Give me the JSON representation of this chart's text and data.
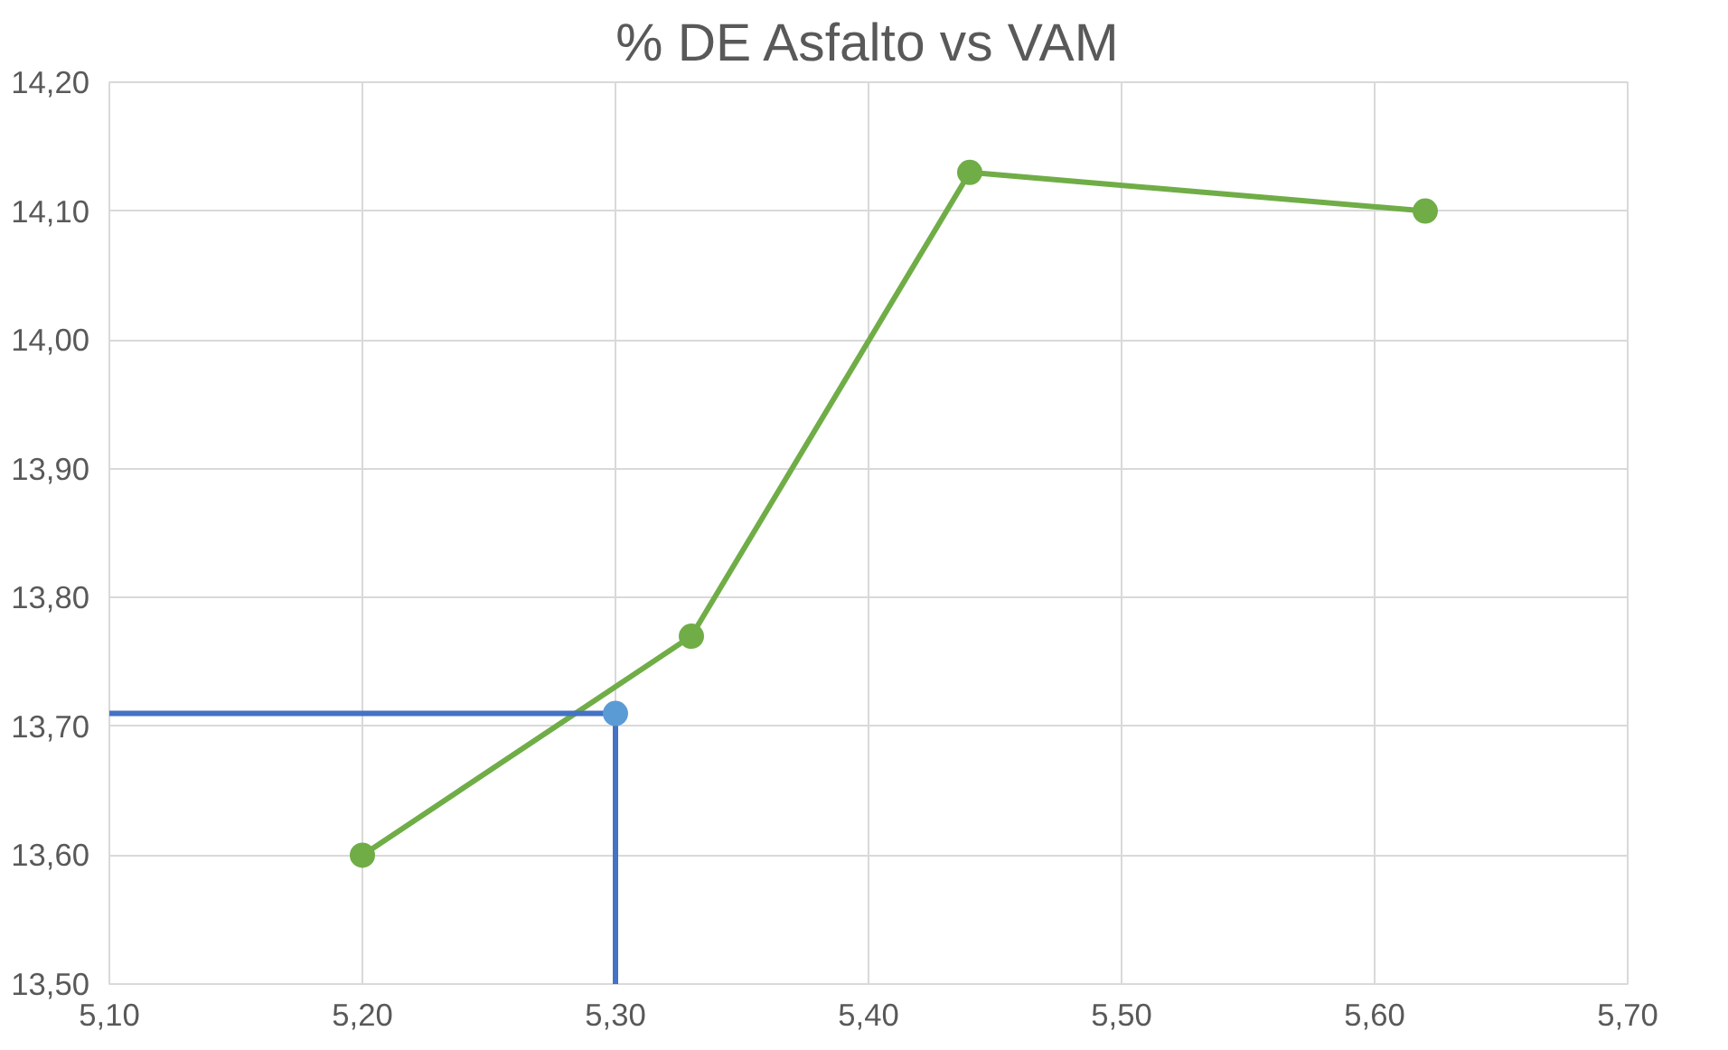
{
  "chart_data": {
    "type": "line",
    "title": "% DE Asfalto vs VAM",
    "xlim": [
      5.1,
      5.7
    ],
    "xticks": [
      {
        "value": 5.1,
        "label": "5,10"
      },
      {
        "value": 5.2,
        "label": "5,20"
      },
      {
        "value": 5.3,
        "label": "5,30"
      },
      {
        "value": 5.4,
        "label": "5,40"
      },
      {
        "value": 5.5,
        "label": "5,50"
      },
      {
        "value": 5.6,
        "label": "5,60"
      },
      {
        "value": 5.7,
        "label": "5,70"
      }
    ],
    "ylim": [
      13.5,
      14.2
    ],
    "yticks": [
      {
        "value": 13.5,
        "label": "13,50"
      },
      {
        "value": 13.6,
        "label": "13,60"
      },
      {
        "value": 13.7,
        "label": "13,70"
      },
      {
        "value": 13.8,
        "label": "13,80"
      },
      {
        "value": 13.9,
        "label": "13,90"
      },
      {
        "value": 14.0,
        "label": "14,00"
      },
      {
        "value": 14.1,
        "label": "14,10"
      },
      {
        "value": 14.2,
        "label": "14,20"
      }
    ],
    "grid": true,
    "series": [
      {
        "color": "#70ad47",
        "marker": "circle",
        "x": [
          5.2,
          5.33,
          5.44,
          5.62
        ],
        "values": [
          13.6,
          13.77,
          14.13,
          14.1
        ]
      },
      {
        "type": "step",
        "color": "#4472c4",
        "marker": "none",
        "x": [
          5.1,
          5.3
        ],
        "values": [
          13.71,
          13.5
        ]
      },
      {
        "type": "scatter",
        "color": "#5b9bd5",
        "marker": "circle",
        "x": [
          5.3
        ],
        "values": [
          13.71
        ]
      }
    ]
  }
}
